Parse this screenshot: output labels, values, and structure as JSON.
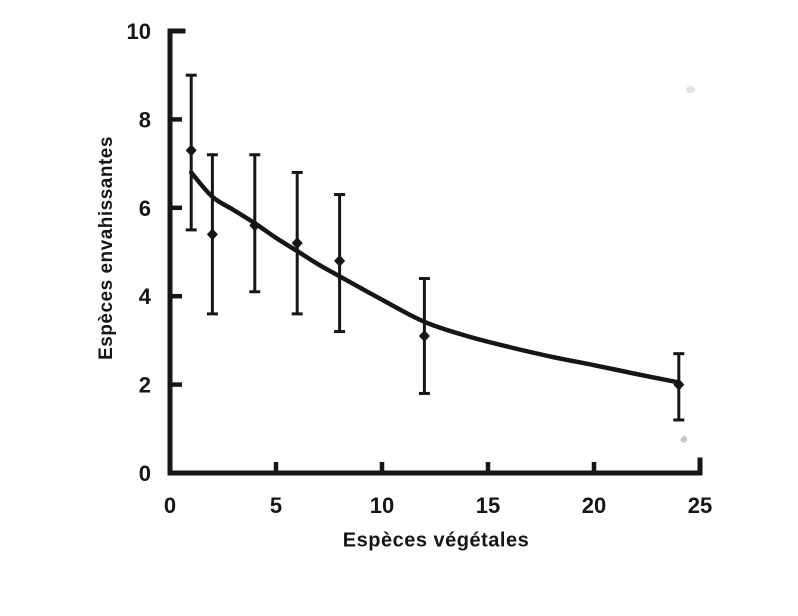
{
  "figure": {
    "background": "#ffffff",
    "ink_color": "#161616"
  },
  "chart_data": {
    "type": "scatter",
    "title": "",
    "xlabel": "Espèces végétales",
    "ylabel": "Espèces envahissantes",
    "xlim": [
      0,
      25
    ],
    "ylim": [
      0,
      10
    ],
    "x_ticks": [
      0,
      5,
      10,
      15,
      20,
      25
    ],
    "y_ticks": [
      0,
      2,
      4,
      6,
      8,
      10
    ],
    "grid": false,
    "legend": null,
    "marker": "filled-diamond",
    "error_bars": "vertical-with-caps",
    "points": [
      {
        "x": 1,
        "y": 7.3,
        "err_low": 5.5,
        "err_high": 9.0
      },
      {
        "x": 2,
        "y": 5.4,
        "err_low": 3.6,
        "err_high": 7.2
      },
      {
        "x": 4,
        "y": 5.6,
        "err_low": 4.1,
        "err_high": 7.2
      },
      {
        "x": 6,
        "y": 5.2,
        "err_low": 3.6,
        "err_high": 6.8
      },
      {
        "x": 8,
        "y": 4.8,
        "err_low": 3.2,
        "err_high": 6.3
      },
      {
        "x": 12,
        "y": 3.1,
        "err_low": 1.8,
        "err_high": 4.4
      },
      {
        "x": 24,
        "y": 2.0,
        "err_low": 1.2,
        "err_high": 2.7
      }
    ],
    "fit_curve": {
      "shape": "smooth decreasing exponential-like trend",
      "points": [
        [
          1,
          6.8
        ],
        [
          2,
          6.25
        ],
        [
          3,
          5.95
        ],
        [
          4,
          5.65
        ],
        [
          5,
          5.32
        ],
        [
          6,
          5.02
        ],
        [
          7,
          4.72
        ],
        [
          8,
          4.45
        ],
        [
          10,
          3.92
        ],
        [
          12,
          3.42
        ],
        [
          14,
          3.1
        ],
        [
          16,
          2.85
        ],
        [
          18,
          2.63
        ],
        [
          20,
          2.44
        ],
        [
          22,
          2.24
        ],
        [
          24,
          2.05
        ]
      ]
    }
  }
}
